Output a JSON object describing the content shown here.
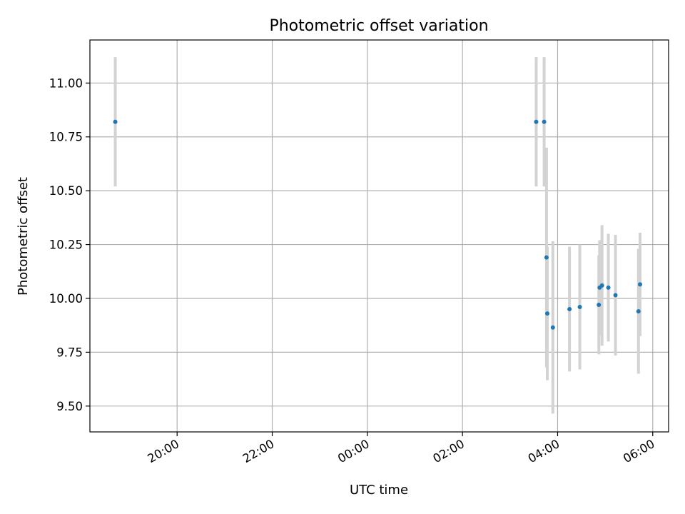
{
  "chart_data": {
    "type": "scatter",
    "title": "Photometric offset variation",
    "xlabel": "UTC time",
    "ylabel": "Photometric offset",
    "grid": true,
    "y_ticks": [
      9.5,
      9.75,
      10.0,
      10.25,
      10.5,
      10.75,
      11.0
    ],
    "y_tick_labels": [
      "9.50",
      "9.75",
      "10.00",
      "10.25",
      "10.50",
      "10.75",
      "11.00"
    ],
    "x_ticks": [
      "20:00",
      "22:00",
      "00:00",
      "02:00",
      "04:00",
      "06:00"
    ],
    "x_tick_labels": [
      "20:00",
      "22:00",
      "00:00",
      "02:00",
      "04:00",
      "06:00"
    ],
    "xlim": [
      "18:10",
      "06:20"
    ],
    "ylim": [
      9.38,
      11.2
    ],
    "marker_color": "#1f77b4",
    "errorbar_color": "#d3d3d3",
    "points": [
      {
        "x": "18:42",
        "y": 10.82,
        "err": 0.3
      },
      {
        "x": "03:33",
        "y": 10.82,
        "err": 0.3
      },
      {
        "x": "03:43",
        "y": 10.82,
        "err": 0.3
      },
      {
        "x": "03:46",
        "y": 10.19,
        "err": 0.51
      },
      {
        "x": "03:47",
        "y": 9.93,
        "err": 0.31
      },
      {
        "x": "03:54",
        "y": 9.865,
        "err": 0.4
      },
      {
        "x": "04:15",
        "y": 9.95,
        "err": 0.29
      },
      {
        "x": "04:28",
        "y": 9.96,
        "err": 0.29
      },
      {
        "x": "04:52",
        "y": 9.97,
        "err": 0.23
      },
      {
        "x": "04:53",
        "y": 10.05,
        "err": 0.22
      },
      {
        "x": "04:56",
        "y": 10.06,
        "err": 0.28
      },
      {
        "x": "05:04",
        "y": 10.05,
        "err": 0.25
      },
      {
        "x": "05:13",
        "y": 10.015,
        "err": 0.28
      },
      {
        "x": "05:42",
        "y": 9.94,
        "err": 0.29
      },
      {
        "x": "05:44",
        "y": 10.065,
        "err": 0.24
      }
    ]
  }
}
